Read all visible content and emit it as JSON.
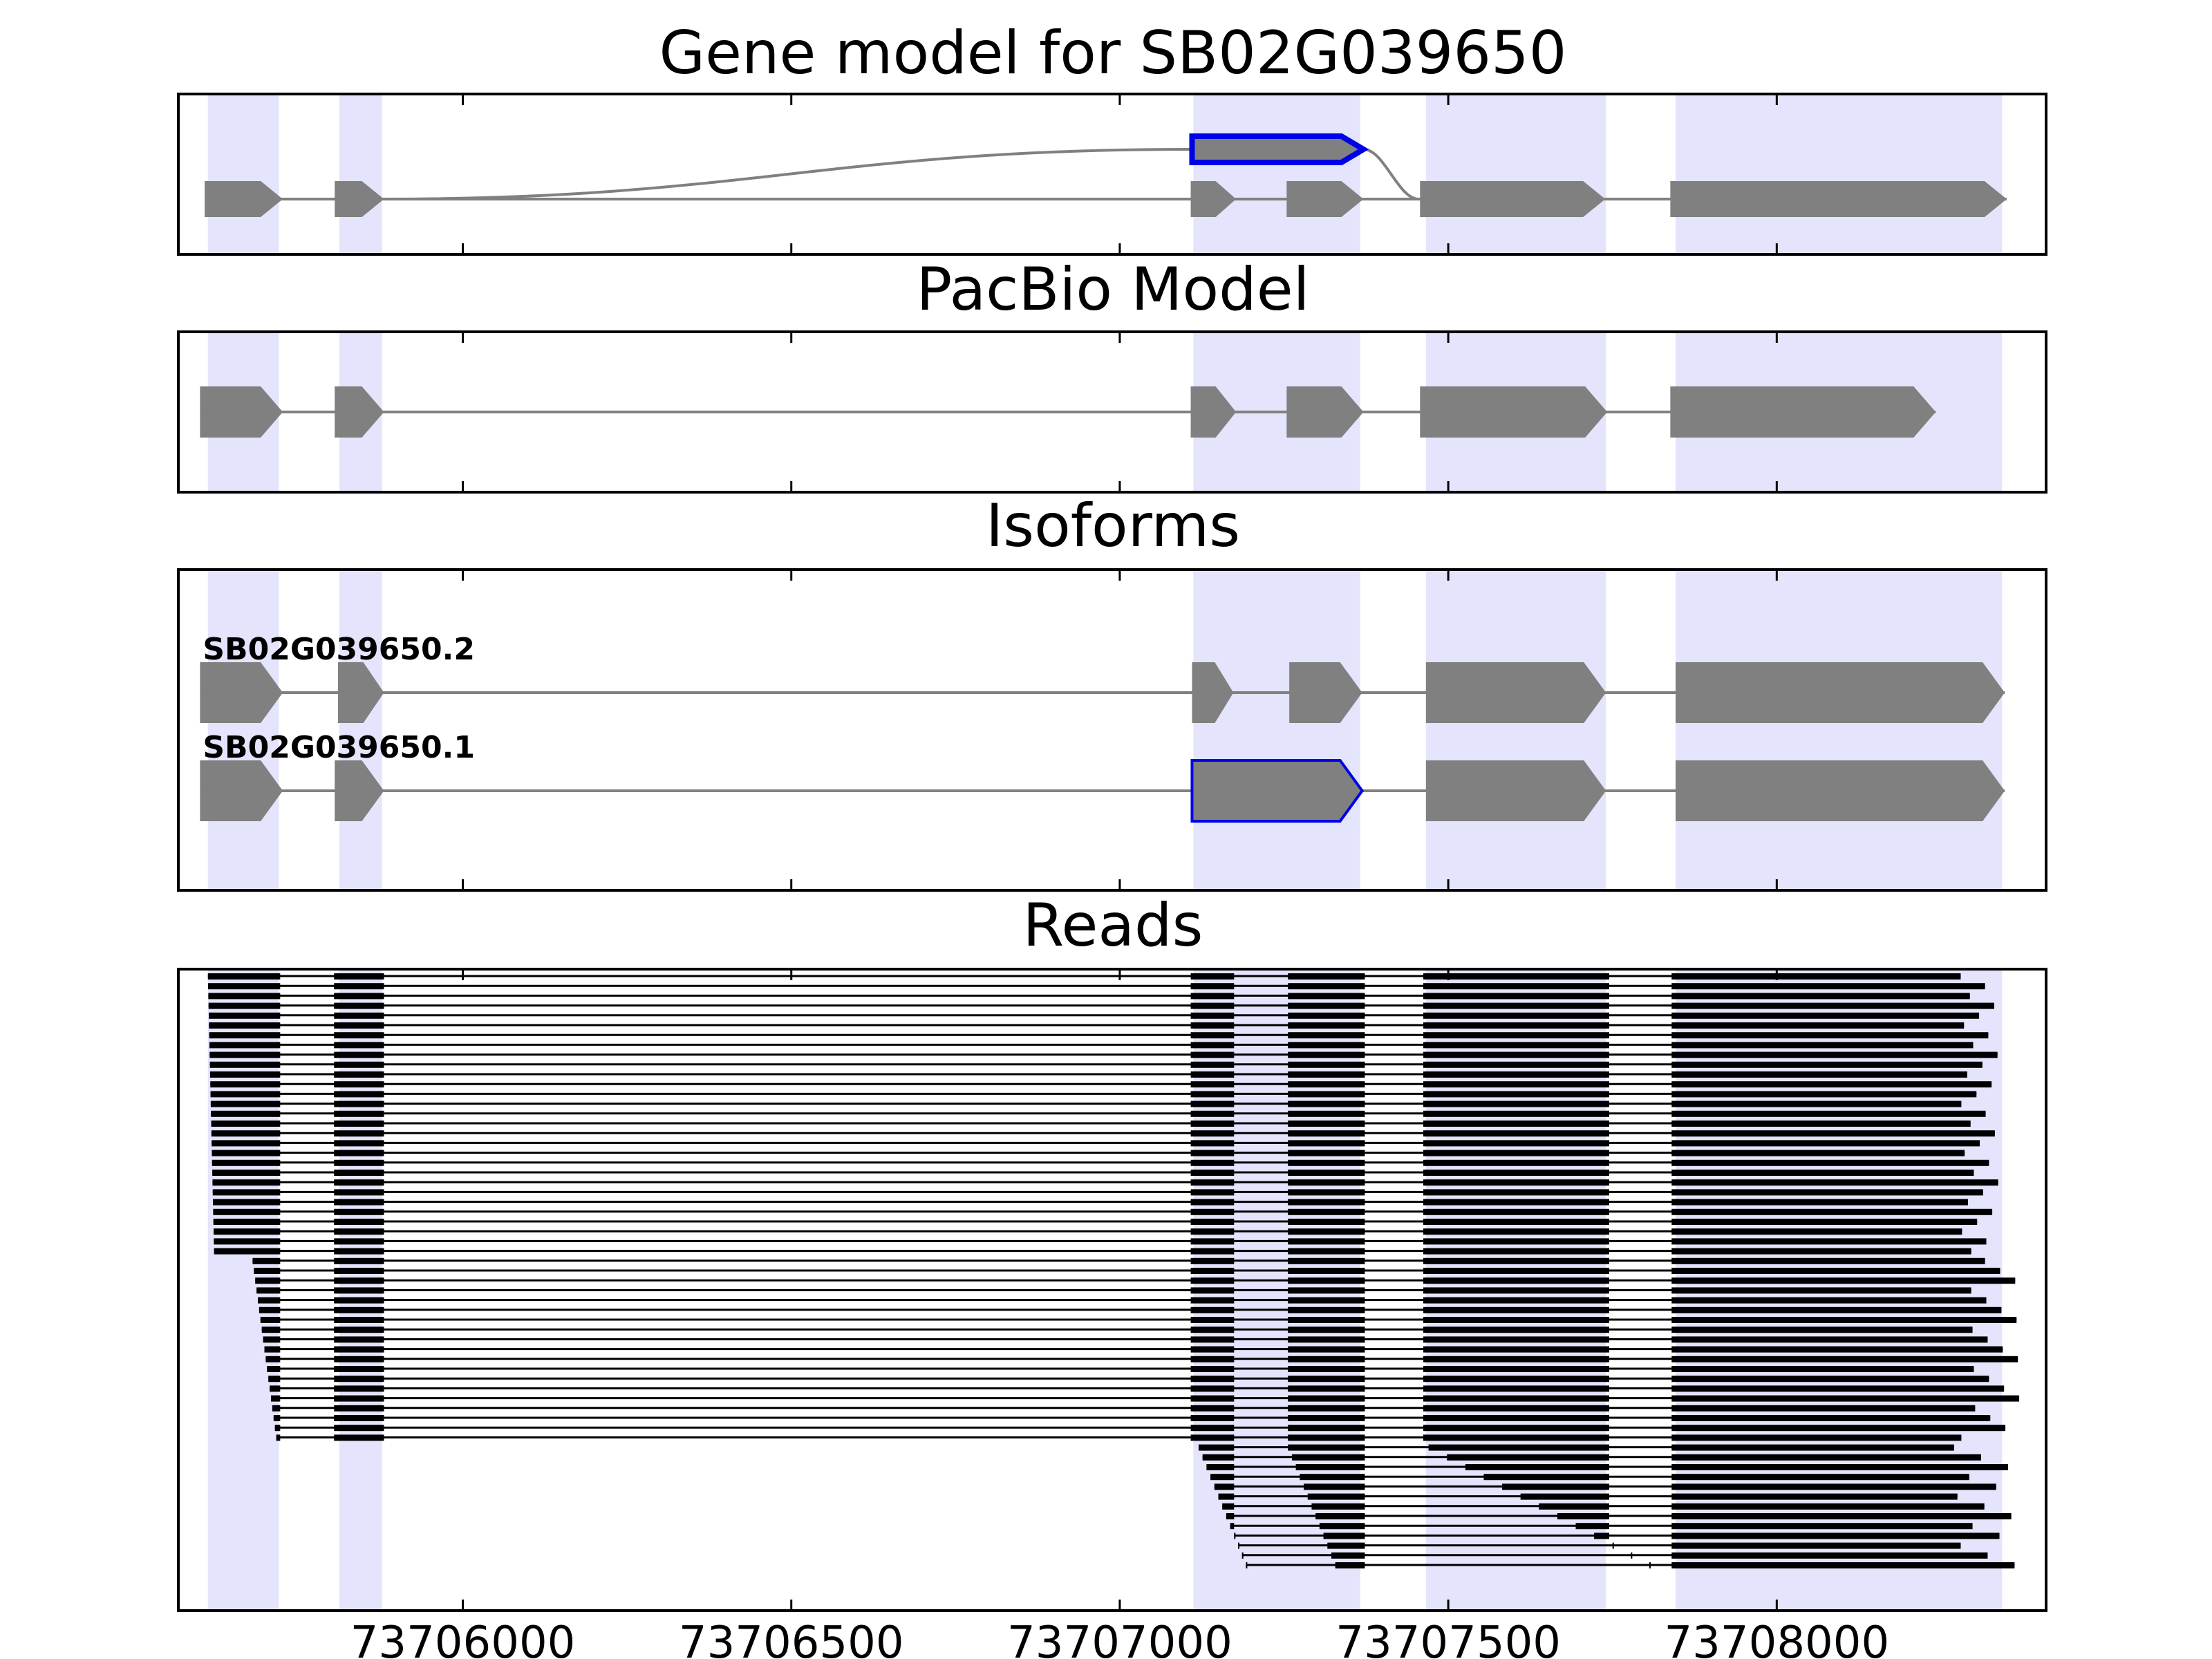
{
  "colors": {
    "background": "#ffffff",
    "exon_fill": "#808080",
    "intron_line": "#808080",
    "highlight_band": "#e4e4fc",
    "selected_outline": "#0000e6",
    "read_color": "#000000",
    "axis": "#000000"
  },
  "genome": {
    "start": 73705567,
    "end": 73708410
  },
  "bands": [
    [
      73705612,
      73705720
    ],
    [
      73705812,
      73705877
    ],
    [
      73707112,
      73707366
    ],
    [
      73707466,
      73707740
    ],
    [
      73707846,
      73708343
    ]
  ],
  "x_axis": {
    "ticks": [
      73706000,
      73706500,
      73707000,
      73707500,
      73708000
    ],
    "tick_labels": [
      "73706000",
      "73706500",
      "73707000",
      "73707500",
      "73708000"
    ]
  },
  "panels": [
    {
      "id": "gene-model",
      "title": "Gene model for SB02G039650",
      "tracks": [
        {
          "exons": [
            [
              73705607,
              73705726
            ],
            [
              73705805,
              73705880
            ],
            [
              73707108,
              73707177
            ],
            [
              73707254,
              73707371
            ],
            [
              73707457,
              73707739
            ],
            [
              73707838,
              73708350
            ]
          ]
        }
      ],
      "selected_exon": {
        "start": 73707110,
        "end": 73707371
      },
      "curve": {
        "from": 73705880,
        "to": 73707110,
        "end": 73707455
      }
    },
    {
      "id": "pacbio-model",
      "title": "PacBio Model",
      "tracks": [
        {
          "exons": [
            [
              73705600,
              73705726
            ],
            [
              73705805,
              73705880
            ],
            [
              73707108,
              73707177
            ],
            [
              73707254,
              73707371
            ],
            [
              73707457,
              73707742
            ],
            [
              73707838,
              73708242
            ]
          ]
        }
      ]
    },
    {
      "id": "isoforms",
      "title": "Isoforms",
      "tracks": [
        {
          "label": "SB02G039650.2",
          "exons": [
            [
              73705600,
              73705726
            ],
            [
              73705810,
              73705880
            ],
            [
              73707110,
              73707173
            ],
            [
              73707258,
              73707369
            ],
            [
              73707466,
              73707740
            ],
            [
              73707846,
              73708347
            ]
          ]
        },
        {
          "label": "SB02G039650.1",
          "exons": [
            [
              73705600,
              73705726
            ],
            [
              73705805,
              73705880
            ],
            [
              73707110,
              73707369
            ],
            [
              73707466,
              73707740
            ],
            [
              73707846,
              73708347
            ]
          ],
          "selected_exon_index": 2
        }
      ]
    },
    {
      "id": "reads",
      "title": "Reads",
      "read_count": 61
    }
  ]
}
